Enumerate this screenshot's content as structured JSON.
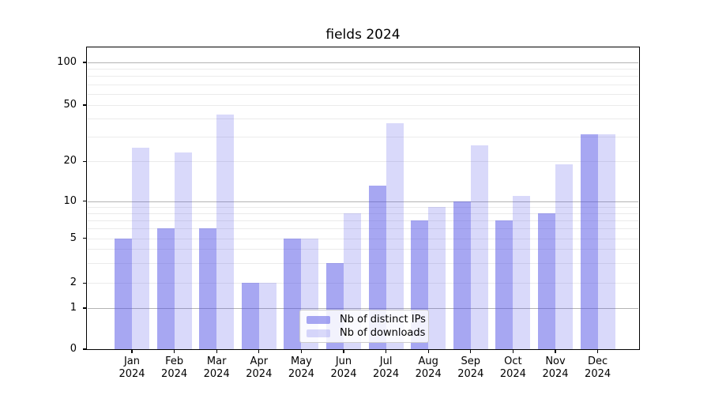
{
  "title": "fields 2024",
  "colors": {
    "bar_distinct_ips": "rgba(80,80,230,0.5)",
    "bar_downloads": "rgba(80,80,230,0.22)",
    "major_grid": "#b3b3b3",
    "minor_grid": "#ebebeb",
    "axis": "#000000",
    "legend_border": "#cccccc"
  },
  "chart_data": {
    "type": "bar",
    "title": "fields 2024",
    "categories": [
      "Jan 2024",
      "Feb 2024",
      "Mar 2024",
      "Apr 2024",
      "May 2024",
      "Jun 2024",
      "Jul 2024",
      "Aug 2024",
      "Sep 2024",
      "Oct 2024",
      "Nov 2024",
      "Dec 2024"
    ],
    "series": [
      {
        "name": "Nb of distinct IPs",
        "values": [
          5,
          6,
          6,
          2,
          5,
          3,
          13,
          7,
          10,
          7,
          8,
          31
        ],
        "color": "rgba(80,80,230,0.5)"
      },
      {
        "name": "Nb of downloads",
        "values": [
          25,
          23,
          43,
          2,
          5,
          8,
          37,
          9,
          26,
          11,
          19,
          31
        ],
        "color": "rgba(80,80,230,0.22)"
      }
    ],
    "xlabel": "",
    "ylabel": "",
    "yscale": "log-like (compressed near zero, 0 shown at baseline)",
    "yticks": [
      0,
      1,
      2,
      5,
      10,
      20,
      50,
      100
    ],
    "major_gridlines": [
      1,
      10,
      100
    ],
    "minor_gridlines": [
      2,
      3,
      4,
      5,
      6,
      7,
      8,
      9,
      20,
      30,
      40,
      50,
      60,
      70,
      80,
      90
    ],
    "ylim": [
      0,
      128
    ],
    "grid": "horizontal",
    "legend_position": "lower center"
  }
}
